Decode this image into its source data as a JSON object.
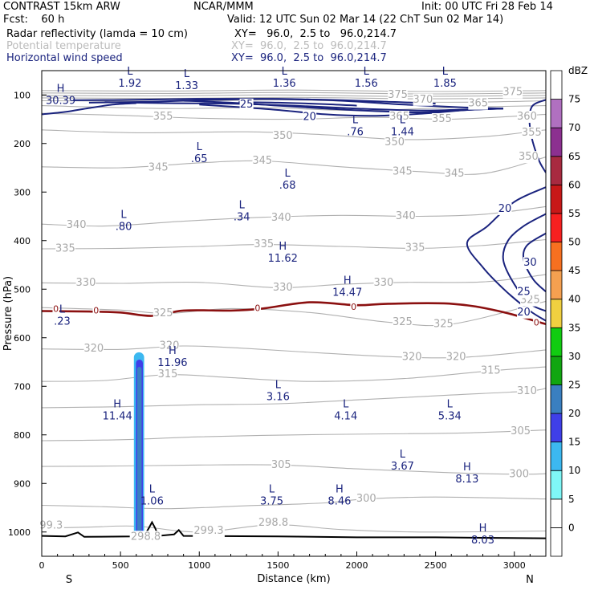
{
  "header": {
    "line1_left": "CONTRAST 15km ARW",
    "line1_mid": "NCAR/MMM",
    "line1_right": "Init: 00 UTC Fri 28 Feb 14",
    "line2_left": "Fcst:    60 h",
    "line2_right": "Valid: 12 UTC Sun 02 Mar 14 (22 ChT Sun 02 Mar 14)",
    "field1_name": "Radar reflectivity (lamda = 10 cm)",
    "field1_xy": "XY=   96.0,  2.5 to   96.0,214.7",
    "field2_name": "Potential temperature",
    "field2_xy": "XY=  96.0,  2.5 to  96.0,214.7",
    "field3_name": "Horizontal wind speed",
    "field3_xy": "XY=  96.0,  2.5 to  96.0,214.7"
  },
  "colors": {
    "theta": "#b0b0b0",
    "wind": "#1a237e",
    "freezing": "#8b1010",
    "ground": "#000000"
  },
  "chart_data": {
    "type": "cross-section",
    "xlabel": "Distance (km)",
    "ylabel": "Pressure (hPa)",
    "xlim": [
      0,
      3200
    ],
    "ylim": [
      1050,
      50
    ],
    "xticks": [
      "0",
      "500",
      "1000",
      "1500",
      "2000",
      "2500",
      "3000"
    ],
    "xtick_values": [
      0,
      500,
      1000,
      1500,
      2000,
      2500,
      3000
    ],
    "yticks": [
      "100",
      "200",
      "300",
      "400",
      "500",
      "600",
      "700",
      "800",
      "900",
      "1000"
    ],
    "ytick_values": [
      100,
      200,
      300,
      400,
      500,
      600,
      700,
      800,
      900,
      1000
    ],
    "end_labels": {
      "left": "S",
      "right": "N"
    },
    "colorbar": {
      "title": "dBZ",
      "levels": [
        "0",
        "5",
        "10",
        "15",
        "20",
        "25",
        "30",
        "35",
        "40",
        "45",
        "50",
        "55",
        "60",
        "65",
        "70",
        "75"
      ],
      "colors": [
        "#ffffff",
        "#ffffff",
        "#7ff7f7",
        "#3cb8f0",
        "#3f3fe8",
        "#3a7fc0",
        "#11a611",
        "#11cc11",
        "#f0d040",
        "#f5a050",
        "#f77020",
        "#f72020",
        "#c81818",
        "#a82a40",
        "#8c3090",
        "#b070c0",
        "#ffffff"
      ]
    },
    "theta_labels": [
      {
        "t": "375",
        "x": 2260,
        "p": 100
      },
      {
        "t": "370",
        "x": 2420,
        "p": 110
      },
      {
        "t": "365",
        "x": 2770,
        "p": 118
      },
      {
        "t": "375",
        "x": 2990,
        "p": 95
      },
      {
        "t": "360",
        "x": 3080,
        "p": 145
      },
      {
        "t": "355",
        "x": 770,
        "p": 145
      },
      {
        "t": "365",
        "x": 2270,
        "p": 145
      },
      {
        "t": "355",
        "x": 2540,
        "p": 150
      },
      {
        "t": "350",
        "x": 1530,
        "p": 185
      },
      {
        "t": "350",
        "x": 2240,
        "p": 198
      },
      {
        "t": "355",
        "x": 3110,
        "p": 178
      },
      {
        "t": "345",
        "x": 740,
        "p": 250
      },
      {
        "t": "345",
        "x": 1400,
        "p": 236
      },
      {
        "t": "350",
        "x": 3090,
        "p": 228
      },
      {
        "t": "345",
        "x": 2290,
        "p": 258
      },
      {
        "t": "345",
        "x": 2620,
        "p": 262
      },
      {
        "t": "340",
        "x": 220,
        "p": 368
      },
      {
        "t": "340",
        "x": 1520,
        "p": 353
      },
      {
        "t": "340",
        "x": 2310,
        "p": 350
      },
      {
        "t": "335",
        "x": 150,
        "p": 417
      },
      {
        "t": "335",
        "x": 1410,
        "p": 408
      },
      {
        "t": "335",
        "x": 2370,
        "p": 415
      },
      {
        "t": "330",
        "x": 280,
        "p": 487
      },
      {
        "t": "330",
        "x": 1530,
        "p": 497
      },
      {
        "t": "330",
        "x": 2170,
        "p": 487
      },
      {
        "t": "325",
        "x": 770,
        "p": 550
      },
      {
        "t": "325",
        "x": 2290,
        "p": 568
      },
      {
        "t": "325",
        "x": 2550,
        "p": 572
      },
      {
        "t": "325",
        "x": 3100,
        "p": 523
      },
      {
        "t": "320",
        "x": 330,
        "p": 623
      },
      {
        "t": "320",
        "x": 810,
        "p": 617
      },
      {
        "t": "320",
        "x": 2350,
        "p": 640
      },
      {
        "t": "320",
        "x": 2630,
        "p": 640
      },
      {
        "t": "315",
        "x": 800,
        "p": 676
      },
      {
        "t": "315",
        "x": 2850,
        "p": 668
      },
      {
        "t": "310",
        "x": 3080,
        "p": 710
      },
      {
        "t": "305",
        "x": 3040,
        "p": 793
      },
      {
        "t": "305",
        "x": 1520,
        "p": 862
      },
      {
        "t": "300",
        "x": 3030,
        "p": 881
      },
      {
        "t": "300",
        "x": 2060,
        "p": 932
      },
      {
        "t": "99.3",
        "x": 60,
        "p": 987
      },
      {
        "t": "299.3",
        "x": 1060,
        "p": 998
      },
      {
        "t": "298.8",
        "x": 1470,
        "p": 981
      },
      {
        "t": "298.8",
        "x": 660,
        "p": 1010
      }
    ],
    "wind_labels": [
      {
        "t": "25",
        "x": 1300,
        "p": 120
      },
      {
        "t": "20",
        "x": 1700,
        "p": 146
      },
      {
        "t": "20",
        "x": 2940,
        "p": 335
      },
      {
        "t": "30",
        "x": 3100,
        "p": 446
      },
      {
        "t": "25",
        "x": 3060,
        "p": 506
      },
      {
        "t": "20",
        "x": 3060,
        "p": 548
      }
    ],
    "freezing_labels": [
      {
        "t": "0",
        "x": 90,
        "p": 542
      },
      {
        "t": "0",
        "x": 345,
        "p": 545
      },
      {
        "t": "0",
        "x": 1370,
        "p": 540
      },
      {
        "t": "0",
        "x": 1980,
        "p": 538
      },
      {
        "t": "0",
        "x": 3140,
        "p": 570
      }
    ],
    "hl_labels": [
      {
        "l": "L",
        "v": "1.92",
        "x": 560,
        "p": 70
      },
      {
        "l": "L",
        "v": "1.33",
        "x": 920,
        "p": 75
      },
      {
        "l": "L",
        "v": "1.36",
        "x": 1540,
        "p": 70
      },
      {
        "l": "L",
        "v": "1.56",
        "x": 2060,
        "p": 70
      },
      {
        "l": "L",
        "v": "1.85",
        "x": 2560,
        "p": 70
      },
      {
        "l": "H",
        "v": "30.39",
        "x": 120,
        "p": 105
      },
      {
        "l": "L",
        "v": ".76",
        "x": 1990,
        "p": 170
      },
      {
        "l": "L",
        "v": "1.44",
        "x": 2290,
        "p": 170
      },
      {
        "l": "L",
        "v": ".65",
        "x": 1000,
        "p": 225
      },
      {
        "l": "L",
        "v": ".68",
        "x": 1560,
        "p": 280
      },
      {
        "l": "L",
        "v": ".34",
        "x": 1270,
        "p": 345
      },
      {
        "l": "L",
        "v": ".80",
        "x": 520,
        "p": 365
      },
      {
        "l": "H",
        "v": "11.62",
        "x": 1530,
        "p": 430
      },
      {
        "l": "H",
        "v": "14.47",
        "x": 1940,
        "p": 500
      },
      {
        "l": "L",
        "v": ".23",
        "x": 130,
        "p": 560
      },
      {
        "l": "H",
        "v": "11.96",
        "x": 830,
        "p": 645
      },
      {
        "l": "L",
        "v": "3.16",
        "x": 1500,
        "p": 715
      },
      {
        "l": "H",
        "v": "11.44",
        "x": 480,
        "p": 755
      },
      {
        "l": "L",
        "v": "4.14",
        "x": 1930,
        "p": 755
      },
      {
        "l": "L",
        "v": "5.34",
        "x": 2590,
        "p": 755
      },
      {
        "l": "L",
        "v": "3.67",
        "x": 2290,
        "p": 858
      },
      {
        "l": "H",
        "v": "8.13",
        "x": 2700,
        "p": 885
      },
      {
        "l": "L",
        "v": "1.06",
        "x": 700,
        "p": 930
      },
      {
        "l": "L",
        "v": "3.75",
        "x": 1460,
        "p": 930
      },
      {
        "l": "H",
        "v": "8.46",
        "x": 1890,
        "p": 930
      },
      {
        "l": "H",
        "v": "8.03",
        "x": 2800,
        "p": 1010
      }
    ],
    "freezing_line": [
      [
        0,
        545
      ],
      [
        300,
        546
      ],
      [
        500,
        548
      ],
      [
        700,
        555
      ],
      [
        900,
        544
      ],
      [
        1200,
        544
      ],
      [
        1400,
        540
      ],
      [
        1700,
        527
      ],
      [
        2000,
        533
      ],
      [
        2200,
        530
      ],
      [
        2600,
        530
      ],
      [
        2900,
        545
      ],
      [
        3200,
        572
      ]
    ],
    "ground_line": [
      [
        0,
        1008
      ],
      [
        150,
        1009
      ],
      [
        230,
        1001
      ],
      [
        270,
        1010
      ],
      [
        580,
        1009
      ],
      [
        610,
        1003
      ],
      [
        650,
        1008
      ],
      [
        680,
        992
      ],
      [
        700,
        980
      ],
      [
        720,
        992
      ],
      [
        740,
        1008
      ],
      [
        840,
        1005
      ],
      [
        870,
        996
      ],
      [
        900,
        1008
      ],
      [
        1500,
        1009
      ],
      [
        2000,
        1011
      ],
      [
        2500,
        1011
      ],
      [
        2800,
        1012
      ],
      [
        3200,
        1013
      ]
    ],
    "radar_cells": [
      {
        "dbz": 10,
        "x1": 585,
        "x2": 650,
        "p1": 630,
        "p2": 1012
      },
      {
        "dbz": 15,
        "x1": 598,
        "x2": 642,
        "p1": 645,
        "p2": 1010
      },
      {
        "dbz": 20,
        "x1": 606,
        "x2": 634,
        "p1": 660,
        "p2": 1008
      }
    ]
  }
}
